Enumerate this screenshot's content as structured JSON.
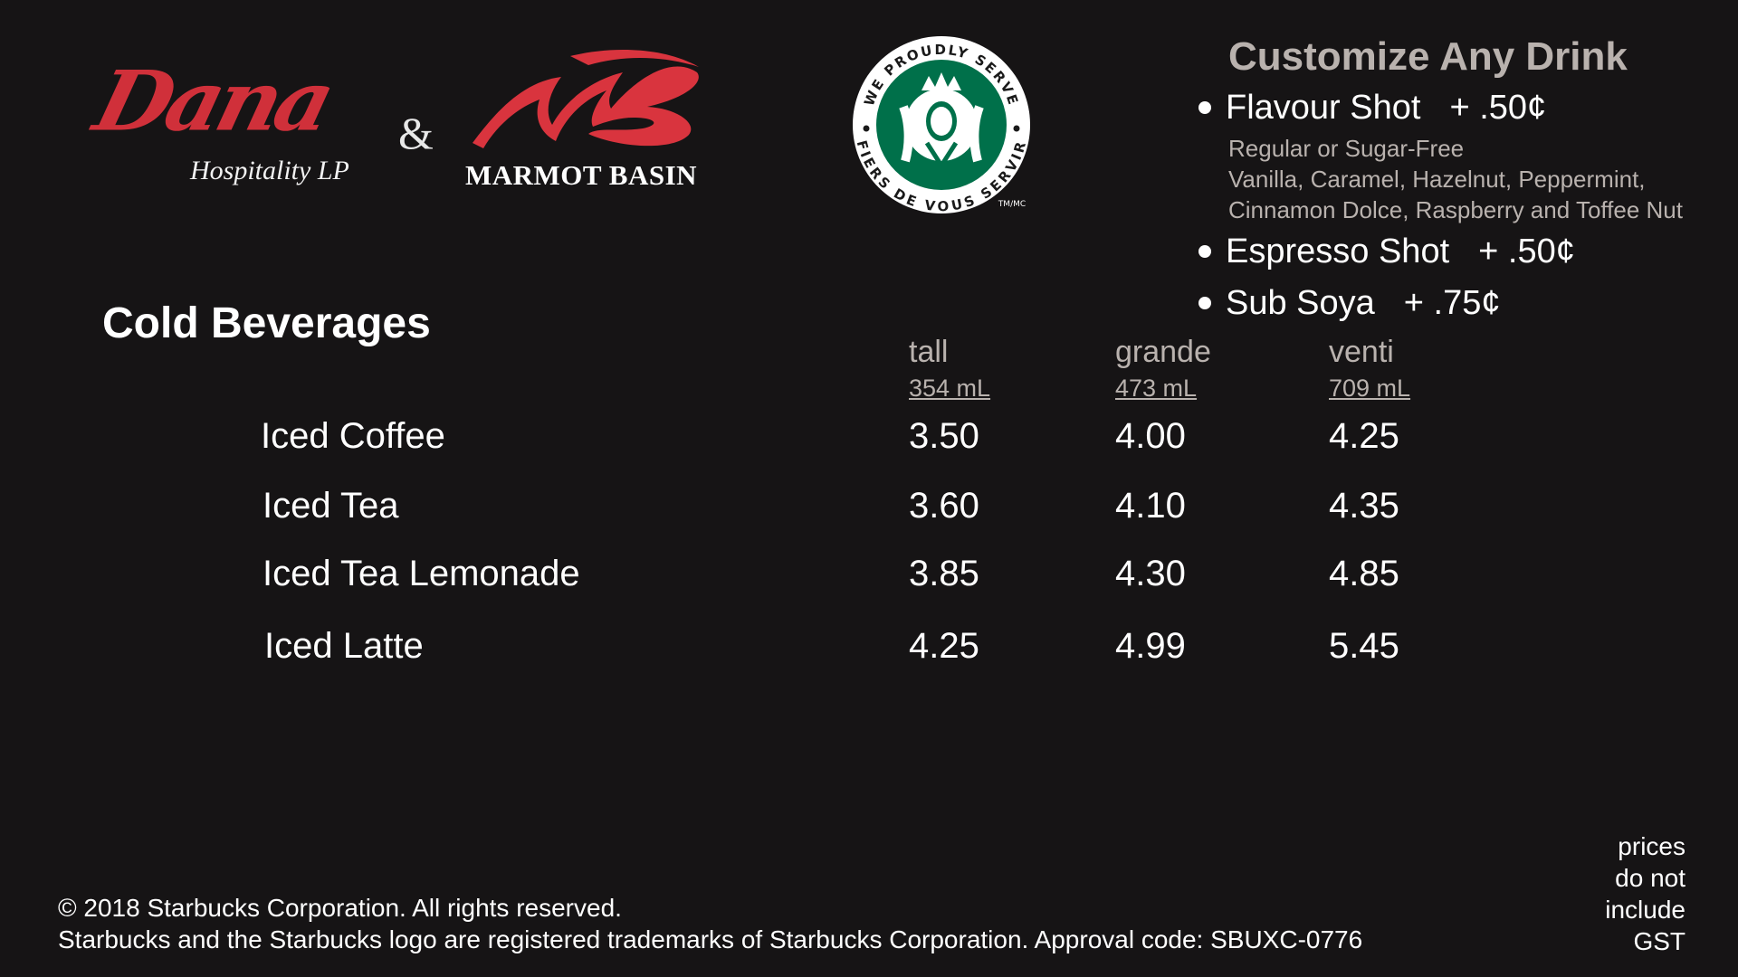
{
  "logos": {
    "dana": {
      "script": "Dana",
      "subtitle": "Hospitality LP"
    },
    "ampersand": "&",
    "marmot": {
      "text": "MARMOT BASIN"
    },
    "starbucks": {
      "top_arc": "WE PROUDLY SERVE",
      "bottom_arc": "FIERS DE VOUS SERVIR",
      "tm": "TM/MC"
    }
  },
  "customize": {
    "title": "Customize Any Drink",
    "options": [
      {
        "name": "Flavour Shot",
        "price": "+ .50¢",
        "details": [
          "Regular or Sugar-Free",
          "Vanilla, Caramel, Hazelnut, Peppermint,",
          "Cinnamon Dolce, Raspberry and Toffee Nut"
        ]
      },
      {
        "name": "Espresso Shot",
        "price": "+ .50¢"
      },
      {
        "name": "Sub Soya",
        "price": "+ .75¢"
      }
    ]
  },
  "menu": {
    "title": "Cold Beverages",
    "sizes": [
      {
        "name": "tall",
        "ml": "354 mL"
      },
      {
        "name": "grande",
        "ml": "473 mL"
      },
      {
        "name": "venti",
        "ml": "709 mL"
      }
    ],
    "items": [
      {
        "name": "Iced Coffee",
        "prices": [
          "3.50",
          "4.00",
          "4.25"
        ]
      },
      {
        "name": "Iced Tea",
        "prices": [
          "3.60",
          "4.10",
          "4.35"
        ]
      },
      {
        "name": "Iced Tea Lemonade",
        "prices": [
          "3.85",
          "4.30",
          "4.85"
        ]
      },
      {
        "name": "Iced Latte",
        "prices": [
          "4.25",
          "4.99",
          "5.45"
        ]
      }
    ]
  },
  "footer": {
    "copyright": "© 2018 Starbucks Corporation. All rights reserved.",
    "trademark": "Starbucks and the Starbucks logo are registered trademarks of Starbucks Corporation. Approval code: SBUXC-0776",
    "gst_note": [
      "prices",
      "do not",
      "include",
      "GST"
    ]
  },
  "colors": {
    "background": "#161415",
    "dana_red": "#d0303a",
    "starbucks_green": "#00704a",
    "muted_text": "#b9b2ae"
  }
}
